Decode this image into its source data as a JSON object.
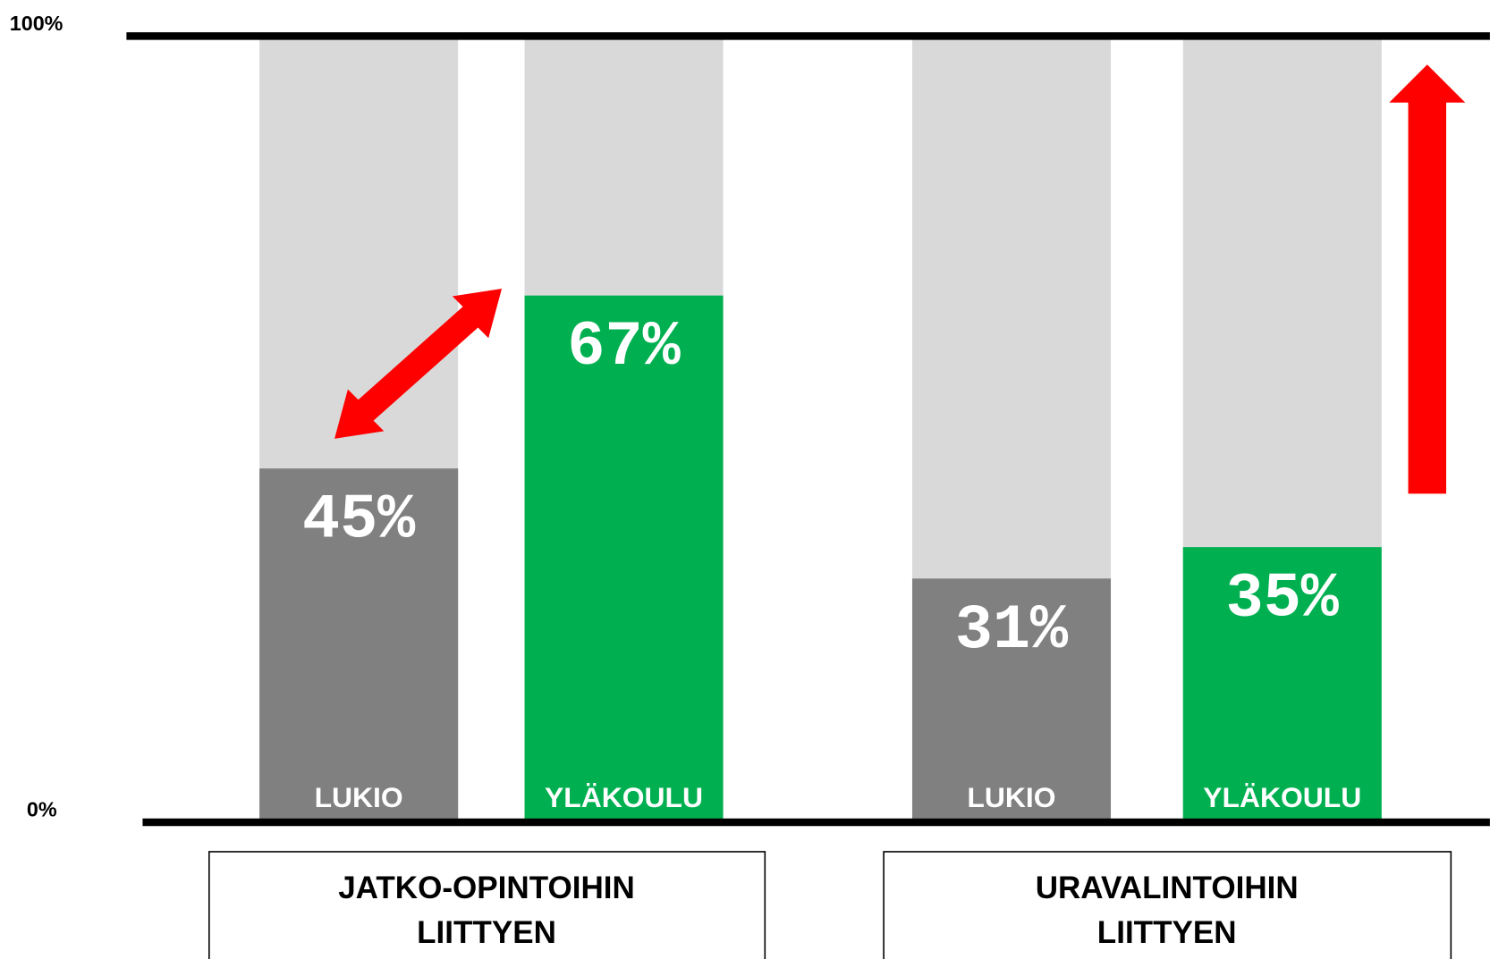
{
  "chart_data": {
    "type": "bar",
    "categories": [
      "LUKIO",
      "YLÄKOULU",
      "LUKIO",
      "YLÄKOULU"
    ],
    "values": [
      45,
      67,
      31,
      35
    ],
    "value_labels": [
      "45%",
      "67%",
      "31%",
      "35%"
    ],
    "colors": [
      "#808080",
      "#00b050",
      "#808080",
      "#00b050"
    ],
    "background_color": "#d9d9d9",
    "group_labels": [
      [
        "JATKO-OPINTOIHIN",
        "LIITTYEN"
      ],
      [
        "URAVALINTOIHIN",
        "LIITTYEN"
      ]
    ],
    "ylim": [
      0,
      100
    ],
    "yticks": [
      {
        "value": 0,
        "label": "0%"
      },
      {
        "value": 100,
        "label": "100%"
      }
    ]
  }
}
